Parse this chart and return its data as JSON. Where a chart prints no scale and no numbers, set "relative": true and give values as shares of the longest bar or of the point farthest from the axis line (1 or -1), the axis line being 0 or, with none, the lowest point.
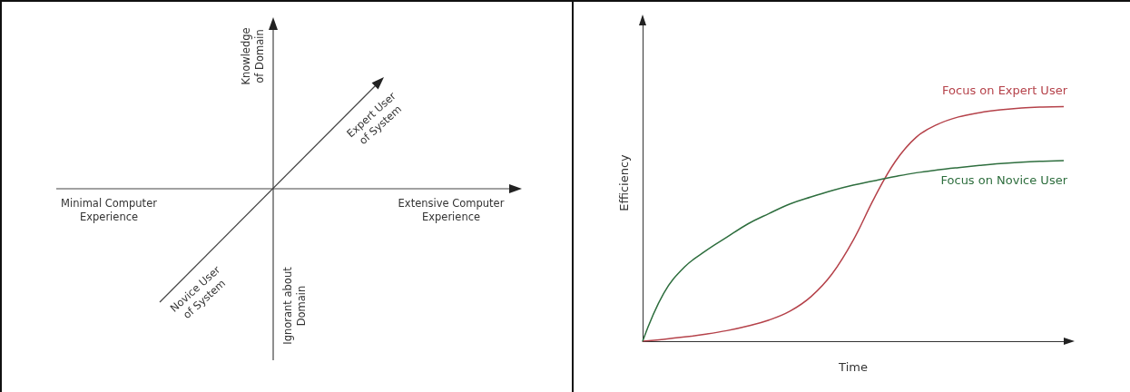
{
  "chart_data": [
    {
      "type": "other",
      "annotations": [
        "Knowledge\nof Domain",
        "Expert User\nof System",
        "Minimal Computer\nExperience",
        "Extensive Computer\nExperience",
        "Novice User\nof System",
        "Ignorant about\nDomain"
      ]
    },
    {
      "type": "line",
      "relative": true,
      "xlabel": "Time",
      "ylabel": "Efficiency",
      "marker": "none",
      "categories": [
        null,
        null,
        null,
        null,
        null,
        null,
        null,
        null,
        null,
        null,
        null,
        null,
        null,
        null,
        null,
        null,
        null,
        null,
        null,
        null,
        null
      ],
      "series": [
        {
          "name": "Focus on Expert User",
          "color": "#b5424a",
          "values": [
            0,
            0.008,
            0.018,
            0.03,
            0.045,
            0.065,
            0.09,
            0.128,
            0.19,
            0.287,
            0.43,
            0.61,
            0.766,
            0.87,
            0.924,
            0.956,
            0.974,
            0.986,
            0.994,
            0.998,
            1
          ]
        },
        {
          "name": "Focus on Novice User",
          "color": "#2e6e3e",
          "values": [
            0,
            0.204,
            0.317,
            0.385,
            0.443,
            0.5,
            0.544,
            0.585,
            0.615,
            0.642,
            0.665,
            0.684,
            0.702,
            0.718,
            0.73,
            0.74,
            0.749,
            0.757,
            0.763,
            0.767,
            0.77
          ]
        }
      ]
    }
  ]
}
